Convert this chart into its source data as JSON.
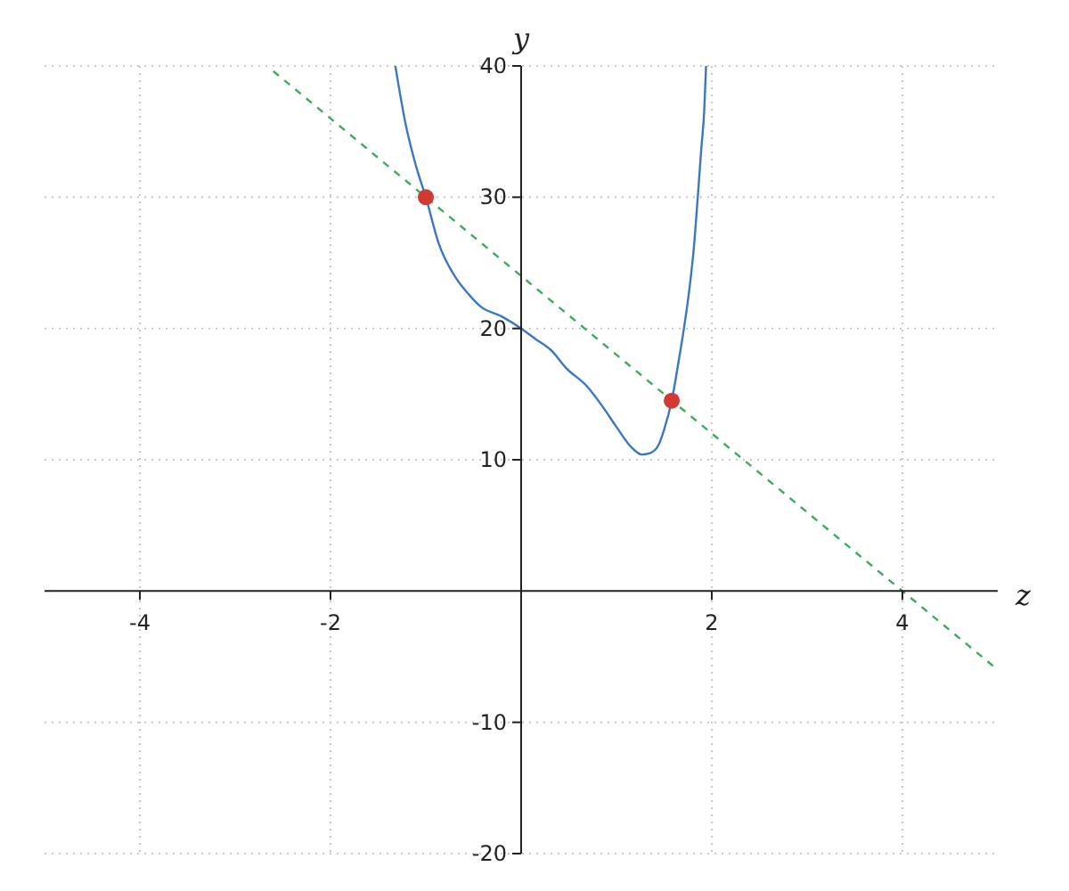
{
  "chart_data": {
    "type": "line",
    "xlabel": "z",
    "ylabel": "y",
    "xlim": [
      -5,
      5
    ],
    "ylim": [
      -20,
      40
    ],
    "xticks": [
      -4,
      -2,
      2,
      4
    ],
    "yticks": [
      -20,
      -10,
      10,
      20,
      30,
      40
    ],
    "grid": true,
    "marker": "none",
    "series": [
      {
        "color": "#3a78c2",
        "line_style": "solid",
        "x": [
          -1.32,
          -1.21,
          -1.1,
          -1.0,
          -0.866,
          -0.68,
          -0.55,
          -0.43,
          -0.2,
          0,
          0.15,
          0.32,
          0.47,
          0.69,
          0.85,
          1.0,
          1.15,
          1.265,
          1.35,
          1.44,
          1.5,
          1.58,
          1.65,
          1.72,
          1.77,
          1.81,
          1.85,
          1.89,
          1.92,
          1.94
        ],
        "values": [
          40,
          35.5,
          32.3,
          30,
          26.5,
          23.8,
          22.6,
          21.7,
          20.9,
          20,
          19.2,
          18.3,
          17.0,
          15.6,
          14.1,
          12.5,
          11.0,
          10.4,
          10.5,
          11.1,
          12.3,
          14.5,
          17.4,
          20.6,
          23.3,
          26,
          29.7,
          33.7,
          36.5,
          40
        ]
      },
      {
        "color": "#3daa5c",
        "line_style": "dashed",
        "x": [
          -2.6,
          5
        ],
        "values": [
          39.6,
          -6
        ]
      },
      {
        "type": "scatter",
        "color": "#d03a32",
        "marker": "circle",
        "x": [
          -1,
          1.58
        ],
        "values": [
          30,
          14.5
        ]
      }
    ]
  }
}
